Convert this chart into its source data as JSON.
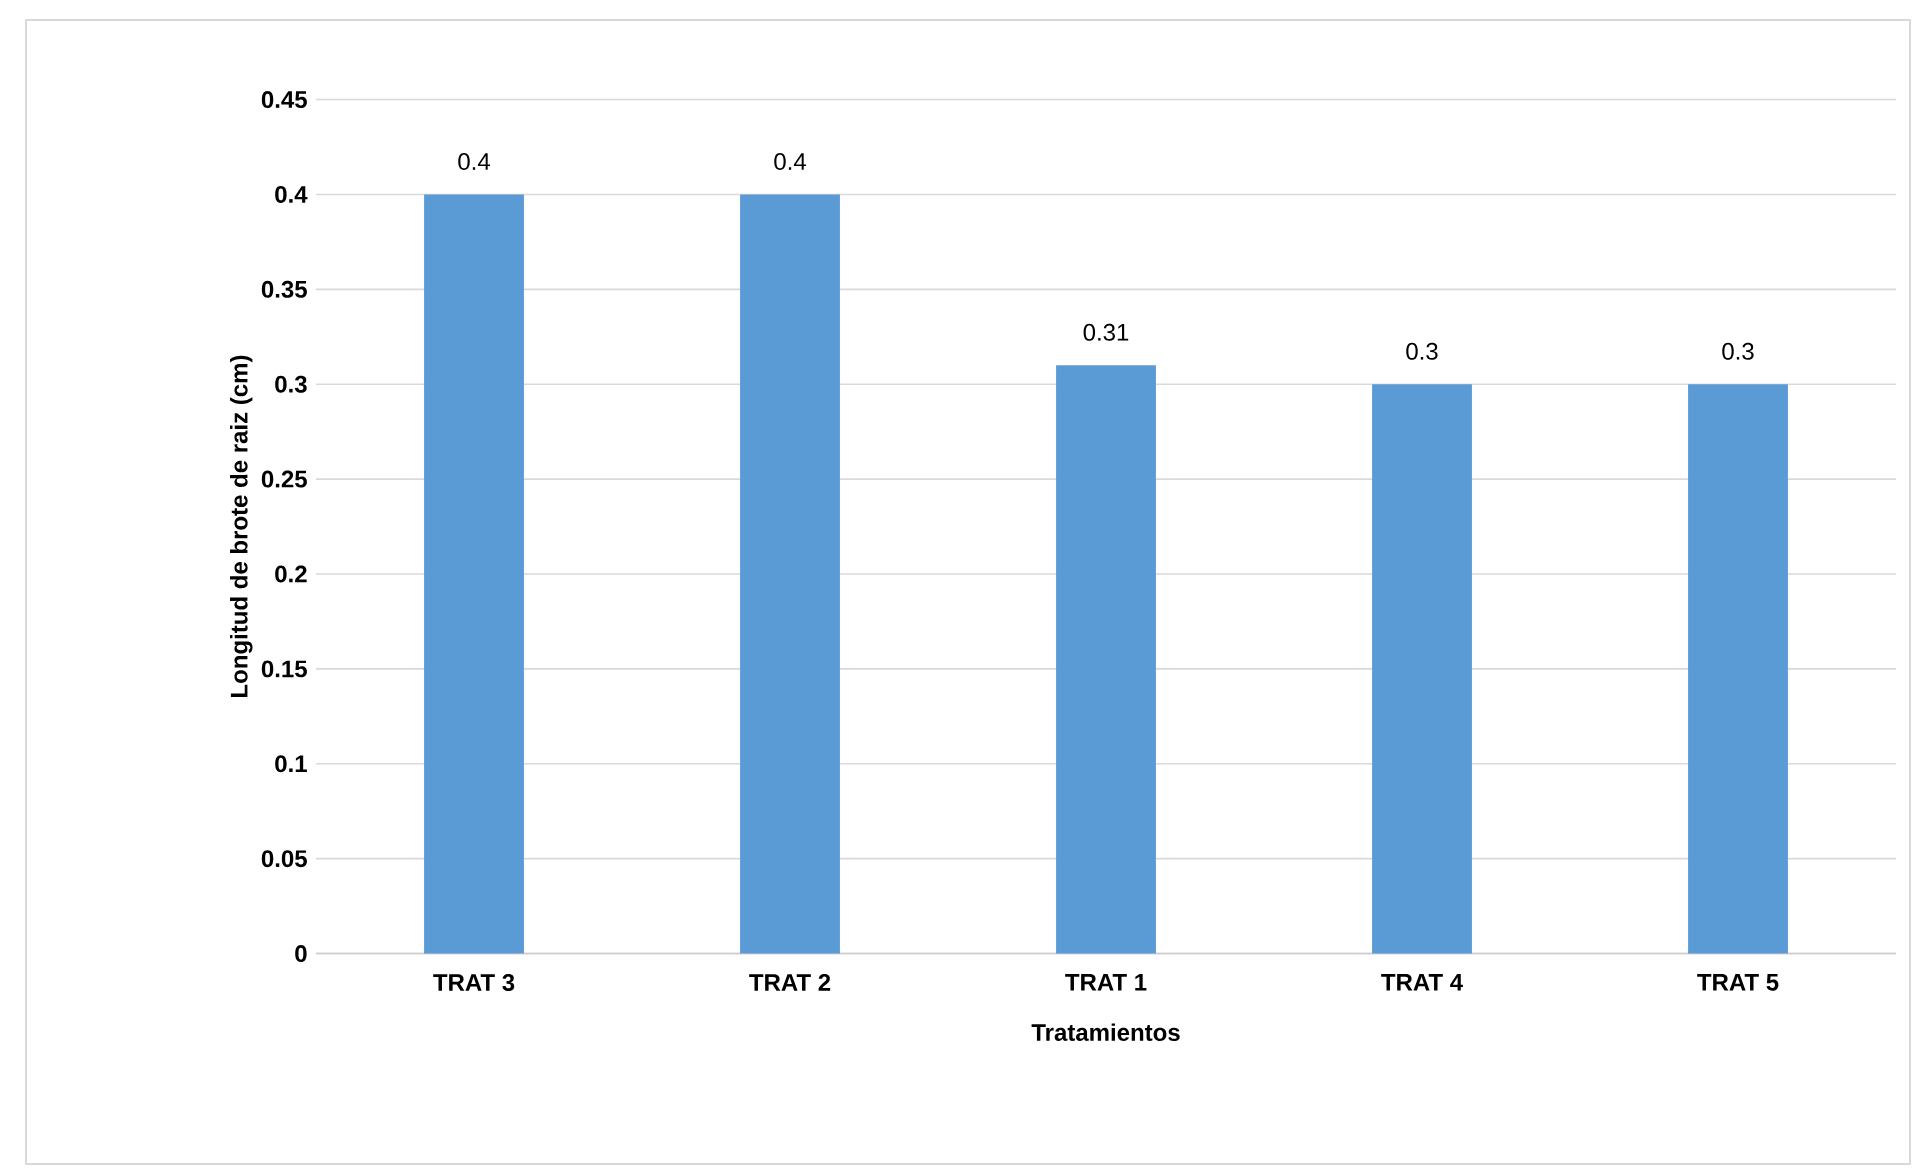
{
  "chart_data": {
    "type": "bar",
    "xlabel": "Tratamientos",
    "ylabel": "Longitud de brote de raiz (cm)",
    "categories": [
      "TRAT 3",
      "TRAT 2",
      "TRAT 1",
      "TRAT 4",
      "TRAT 5"
    ],
    "values": [
      0.4,
      0.4,
      0.31,
      0.3,
      0.3
    ],
    "color": "#5b9bd5",
    "ylim": [
      0,
      0.45
    ],
    "yticks": [
      0,
      0.05,
      0.1,
      0.15,
      0.2,
      0.25,
      0.3,
      0.35,
      0.4,
      0.45
    ],
    "grid": "y",
    "data_labels": true
  }
}
